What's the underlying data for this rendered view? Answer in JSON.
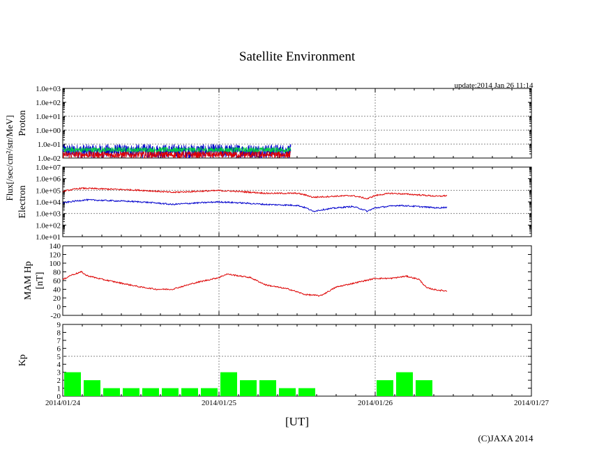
{
  "title": "Satellite Environment",
  "update_text": "update:2014 Jan 26 11:14",
  "copyright": "(C)JAXA 2014",
  "xlabel": "[UT]",
  "x_ticks": [
    "2014/01/24",
    "2014/01/25",
    "2014/01/26",
    "2014/01/27"
  ],
  "flux_label": "Flux[/sec/cm²/str/MeV]",
  "colors": {
    "red": "#dd0000",
    "blue": "#0000cc",
    "green": "#00cc44",
    "magenta": "#ff00aa",
    "kp_bar": "#00ff00",
    "grid": "#888888"
  },
  "chart_data": [
    {
      "type": "line",
      "name": "proton",
      "ylabel": "Proton",
      "yscale": "log",
      "ylim": [
        0.01,
        1000
      ],
      "y_ticks": [
        "1.0e-02",
        "1.0e-01",
        "1.0e+00",
        "1.0e+01",
        "1.0e+02",
        "1.0e+03"
      ],
      "xlim_days": [
        0,
        3
      ],
      "data_end_day": 1.46,
      "series": [
        {
          "color": "blue",
          "baseline": 0.05,
          "min": 0.01,
          "max": 0.1
        },
        {
          "color": "green",
          "baseline": 0.04,
          "min": 0.025,
          "max": 0.06
        },
        {
          "color": "red",
          "baseline": 0.012,
          "min": 0.01,
          "max": 0.03
        }
      ]
    },
    {
      "type": "line",
      "name": "electron",
      "ylabel": "Electron",
      "yscale": "log",
      "ylim": [
        10,
        10000000
      ],
      "y_ticks": [
        "1.0e+01",
        "1.0e+02",
        "1.0e+03",
        "1.0e+04",
        "1.0e+05",
        "1.0e+06",
        "1.0e+07"
      ],
      "series": [
        {
          "color": "red",
          "x": [
            0,
            0.12,
            0.5,
            0.7,
            1.0,
            1.3,
            1.5,
            1.6,
            1.85,
            1.95,
            2.0,
            2.1,
            2.4,
            2.46
          ],
          "y": [
            80000,
            150000,
            100000,
            65000,
            95000,
            55000,
            55000,
            25000,
            35000,
            18000,
            35000,
            55000,
            30000,
            35000
          ]
        },
        {
          "color": "blue",
          "x": [
            0,
            0.15,
            0.5,
            0.7,
            1.0,
            1.3,
            1.5,
            1.6,
            1.85,
            1.95,
            2.0,
            2.15,
            2.4,
            2.46
          ],
          "y": [
            8000,
            15000,
            10000,
            6000,
            10000,
            6000,
            5000,
            1500,
            4000,
            1500,
            3000,
            5000,
            3000,
            3500
          ]
        }
      ]
    },
    {
      "type": "line",
      "name": "mam_hp",
      "ylabel": "MAM Hp",
      "ylabel2": "[nT]",
      "ylim": [
        -20,
        140
      ],
      "y_ticks": [
        "-20",
        "0",
        "20",
        "40",
        "60",
        "80",
        "100",
        "120",
        "140"
      ],
      "series": [
        {
          "color": "red",
          "x": [
            0,
            0.05,
            0.12,
            0.15,
            0.25,
            0.5,
            0.6,
            0.7,
            0.85,
            1.0,
            1.05,
            1.2,
            1.3,
            1.45,
            1.55,
            1.65,
            1.75,
            2.0,
            2.1,
            2.2,
            2.28,
            2.33,
            2.4,
            2.46
          ],
          "y": [
            62,
            72,
            80,
            72,
            63,
            45,
            40,
            40,
            55,
            67,
            75,
            67,
            50,
            40,
            28,
            25,
            45,
            65,
            65,
            70,
            63,
            43,
            38,
            36
          ]
        }
      ]
    },
    {
      "type": "bar",
      "name": "kp",
      "ylabel": "Kp",
      "ylim": [
        0,
        9
      ],
      "y_ticks": [
        "0",
        "1",
        "2",
        "3",
        "4",
        "5",
        "6",
        "7",
        "8",
        "9"
      ],
      "bar_width_days": 0.125,
      "values": [
        3,
        2,
        1,
        1,
        1,
        1,
        1,
        1,
        3,
        2,
        2,
        1,
        1,
        null,
        null,
        null,
        2,
        3,
        2
      ]
    }
  ]
}
